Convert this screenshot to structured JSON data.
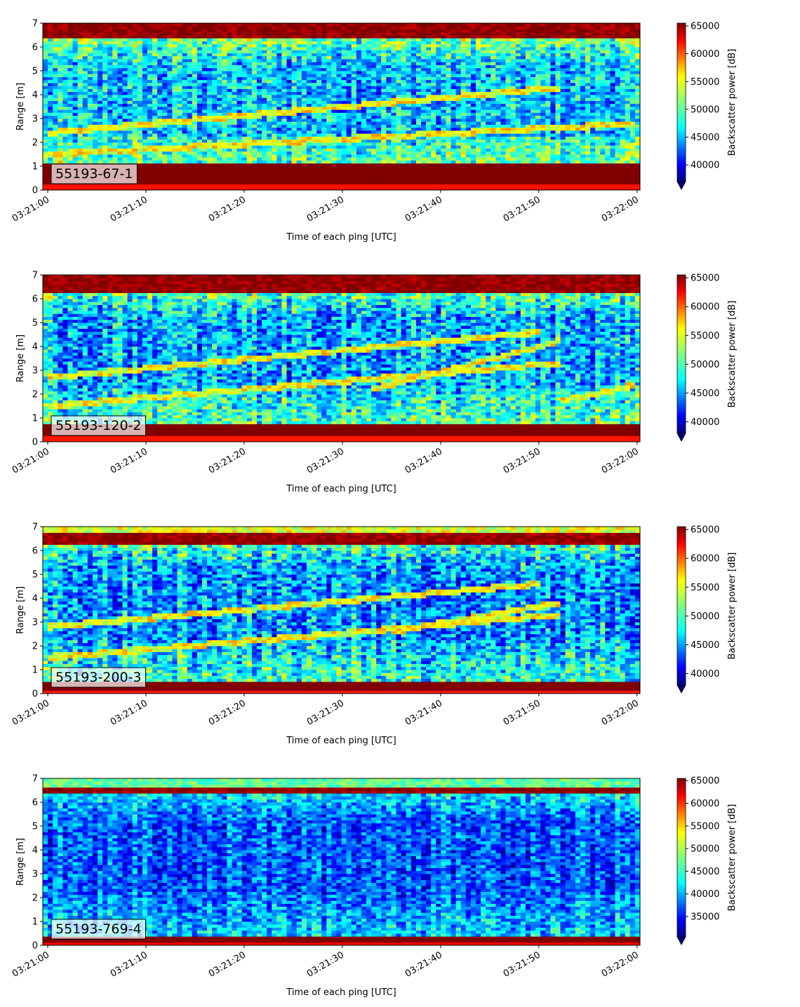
{
  "chart_data": [
    {
      "type": "heatmap",
      "panel_label": "55193-67-1",
      "xlabel": "Time of each ping [UTC]",
      "ylabel": "Range [m]",
      "x_range": [
        "03:21:00",
        "03:22:00"
      ],
      "ylim": [
        0,
        7
      ],
      "x_ticks": [
        "03:21:00",
        "03:21:10",
        "03:21:20",
        "03:21:30",
        "03:21:40",
        "03:21:50",
        "03:22:00"
      ],
      "y_ticks": [
        "0",
        "1",
        "2",
        "3",
        "4",
        "5",
        "6",
        "7"
      ],
      "colorbar": {
        "label": "Backscatter power [dB]",
        "ticks": [
          "40000",
          "45000",
          "50000",
          "55000",
          "60000",
          "65000"
        ],
        "range": [
          37000,
          65500
        ],
        "colormap": "jet",
        "extend": "min"
      },
      "features": {
        "bottom_band_m": [
          0.2,
          1.1
        ],
        "top_band_m": [
          6.35,
          7.0
        ],
        "background_level": 46000,
        "targets": [
          {
            "from": [
              "03:21:00",
              1.5
            ],
            "to": [
              "03:22:00",
              2.8
            ]
          },
          {
            "from": [
              "03:21:00",
              2.4
            ],
            "to": [
              "03:21:52",
              4.3
            ]
          }
        ]
      }
    },
    {
      "type": "heatmap",
      "panel_label": "55193-120-2",
      "xlabel": "Time of each ping [UTC]",
      "ylabel": "Range [m]",
      "x_range": [
        "03:21:00",
        "03:22:00"
      ],
      "ylim": [
        0,
        7
      ],
      "x_ticks": [
        "03:21:00",
        "03:21:10",
        "03:21:20",
        "03:21:30",
        "03:21:40",
        "03:21:50",
        "03:22:00"
      ],
      "y_ticks": [
        "0",
        "1",
        "2",
        "3",
        "4",
        "5",
        "6",
        "7"
      ],
      "colorbar": {
        "label": "Backscatter power [dB]",
        "ticks": [
          "40000",
          "45000",
          "50000",
          "55000",
          "60000",
          "65000"
        ],
        "range": [
          38000,
          65500
        ],
        "colormap": "jet",
        "extend": "min"
      },
      "features": {
        "bottom_band_m": [
          0.2,
          0.75
        ],
        "top_band_m": [
          6.3,
          7.0
        ],
        "background_level": 46000,
        "targets": [
          {
            "from": [
              "03:21:00",
              1.5
            ],
            "to": [
              "03:21:52",
              3.3
            ]
          },
          {
            "from": [
              "03:21:00",
              2.7
            ],
            "to": [
              "03:21:50",
              4.6
            ]
          },
          {
            "from": [
              "03:21:33",
              2.2
            ],
            "to": [
              "03:21:52",
              4.2
            ]
          },
          {
            "from": [
              "03:21:52",
              1.7
            ],
            "to": [
              "03:22:00",
              2.4
            ]
          }
        ]
      }
    },
    {
      "type": "heatmap",
      "panel_label": "55193-200-3",
      "xlabel": "Time of each ping [UTC]",
      "ylabel": "Range [m]",
      "x_range": [
        "03:21:00",
        "03:22:00"
      ],
      "ylim": [
        0,
        7
      ],
      "x_ticks": [
        "03:21:00",
        "03:21:10",
        "03:21:20",
        "03:21:30",
        "03:21:40",
        "03:21:50",
        "03:22:00"
      ],
      "y_ticks": [
        "0",
        "1",
        "2",
        "3",
        "4",
        "5",
        "6",
        "7"
      ],
      "colorbar": {
        "label": "Backscatter power [dB]",
        "ticks": [
          "40000",
          "45000",
          "50000",
          "55000",
          "60000",
          "65000"
        ],
        "range": [
          38000,
          65500
        ],
        "colormap": "jet",
        "extend": "min"
      },
      "features": {
        "bottom_band_m": [
          0.15,
          0.55
        ],
        "top_band_m": [
          6.3,
          6.75
        ],
        "background_level": 45500,
        "targets": [
          {
            "from": [
              "03:21:00",
              1.5
            ],
            "to": [
              "03:21:52",
              3.3
            ]
          },
          {
            "from": [
              "03:21:00",
              2.8
            ],
            "to": [
              "03:21:50",
              4.6
            ]
          },
          {
            "from": [
              "03:21:35",
              2.6
            ],
            "to": [
              "03:21:52",
              3.8
            ]
          }
        ]
      }
    },
    {
      "type": "heatmap",
      "panel_label": "55193-769-4",
      "xlabel": "Time of each ping [UTC]",
      "ylabel": "Range [m]",
      "x_range": [
        "03:21:00",
        "03:22:00"
      ],
      "ylim": [
        0,
        7
      ],
      "x_ticks": [
        "03:21:00",
        "03:21:10",
        "03:21:20",
        "03:21:30",
        "03:21:40",
        "03:21:50",
        "03:22:00"
      ],
      "y_ticks": [
        "0",
        "1",
        "2",
        "3",
        "4",
        "5",
        "6",
        "7"
      ],
      "colorbar": {
        "label": "Backscatter power [dB]",
        "ticks": [
          "35000",
          "40000",
          "45000",
          "50000",
          "55000",
          "60000",
          "65000"
        ],
        "range": [
          30500,
          65500
        ],
        "colormap": "jet",
        "extend": "min"
      },
      "features": {
        "bottom_band_m": [
          0.15,
          0.35
        ],
        "top_band_m": [
          6.35,
          6.6
        ],
        "background_level": 38000,
        "targets": []
      }
    }
  ]
}
